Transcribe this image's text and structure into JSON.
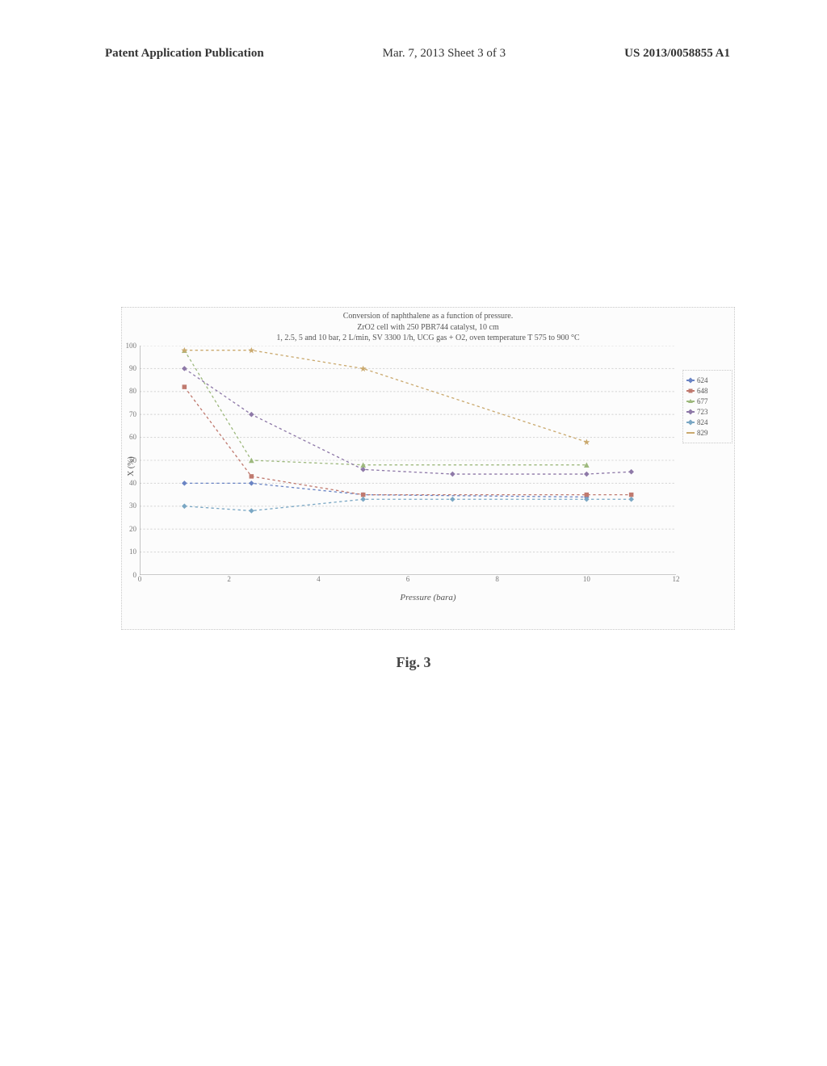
{
  "header": {
    "left": "Patent Application Publication",
    "mid": "Mar. 7, 2013  Sheet 3 of 3",
    "right": "US 2013/0058855 A1"
  },
  "figure_label": "Fig. 3",
  "chart": {
    "type": "line",
    "title_line1": "Conversion of naphthalene as a function of pressure.",
    "title_line2": "ZrO2 cell with 250 PBR744 catalyst, 10 cm",
    "title_line3": "1, 2.5, 5 and 10 bar, 2 L/min, SV 3300 1/h, UCG gas + O2, oven temperature T 575 to 900 °C",
    "xlabel": "Pressure (bara)",
    "ylabel": "X (%)",
    "xlim": [
      0,
      12
    ],
    "ylim": [
      0,
      100
    ],
    "ytick_step": 10,
    "xticks": [
      0,
      2,
      4,
      6,
      8,
      10,
      12
    ],
    "background_color": "#fcfcfc",
    "grid_color": "#d8d8d8",
    "plot_border_color": "#bbbbbb",
    "title_fontsize": 10,
    "label_fontsize": 10,
    "tick_fontsize": 9,
    "series": [
      {
        "name": "624",
        "color": "#6a84c4",
        "marker": "diamond",
        "x": [
          1,
          2.5,
          5,
          10
        ],
        "y": [
          40,
          40,
          35,
          34
        ]
      },
      {
        "name": "648",
        "color": "#c07a6f",
        "marker": "square",
        "x": [
          1,
          2.5,
          5,
          10,
          11
        ],
        "y": [
          82,
          43,
          35,
          35,
          35
        ]
      },
      {
        "name": "677",
        "color": "#9eb97e",
        "marker": "triangle",
        "x": [
          1,
          2.5,
          5,
          10
        ],
        "y": [
          98,
          50,
          48,
          48
        ]
      },
      {
        "name": "723",
        "color": "#8e79a8",
        "marker": "diamond",
        "x": [
          1,
          2.5,
          5,
          7,
          10,
          11
        ],
        "y": [
          90,
          70,
          46,
          44,
          44,
          45
        ]
      },
      {
        "name": "824",
        "color": "#7aa7c4",
        "marker": "diamond",
        "x": [
          1,
          2.5,
          5,
          7,
          10,
          11
        ],
        "y": [
          30,
          28,
          33,
          33,
          33,
          33
        ]
      },
      {
        "name": "829",
        "color": "#caa96e",
        "marker": "star",
        "x": [
          1,
          2.5,
          5,
          10
        ],
        "y": [
          98,
          98,
          90,
          58
        ]
      }
    ]
  }
}
